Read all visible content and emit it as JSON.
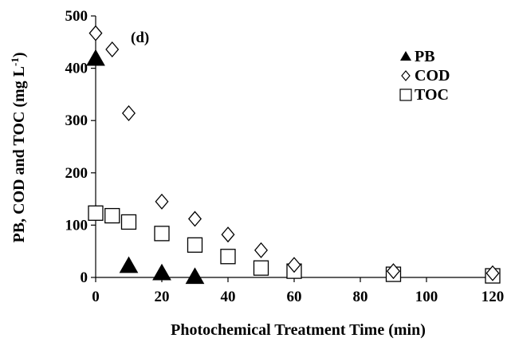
{
  "chart_data": {
    "type": "scatter",
    "annotation": "(d)",
    "xlabel": "Photochemical Treatment Time (min)",
    "ylabel_main": "PB, COD and TOC (mg L",
    "ylabel_sup": "-1",
    "ylabel_close": ")",
    "xlim": [
      0,
      120
    ],
    "ylim": [
      0,
      500
    ],
    "x_ticks": [
      "0",
      "20",
      "40",
      "60",
      "80",
      "100",
      "120"
    ],
    "y_ticks": [
      "0",
      "100",
      "200",
      "300",
      "400",
      "500"
    ],
    "grid": false,
    "legend_position": "top-right",
    "series": [
      {
        "name": "PB",
        "marker": "filled-triangle",
        "color": "#000000",
        "x": [
          0,
          10,
          20,
          30
        ],
        "y": [
          418,
          22,
          8,
          1
        ]
      },
      {
        "name": "COD",
        "marker": "open-diamond",
        "color": "#000000",
        "x": [
          0,
          5,
          10,
          20,
          30,
          40,
          50,
          60,
          90,
          120
        ],
        "y": [
          467,
          436,
          314,
          145,
          112,
          82,
          52,
          24,
          12,
          8
        ]
      },
      {
        "name": "TOC",
        "marker": "open-square",
        "color": "#000000",
        "x": [
          0,
          5,
          10,
          20,
          30,
          40,
          50,
          60,
          90,
          120
        ],
        "y": [
          123,
          118,
          106,
          84,
          62,
          40,
          18,
          12,
          6,
          3
        ]
      }
    ]
  }
}
